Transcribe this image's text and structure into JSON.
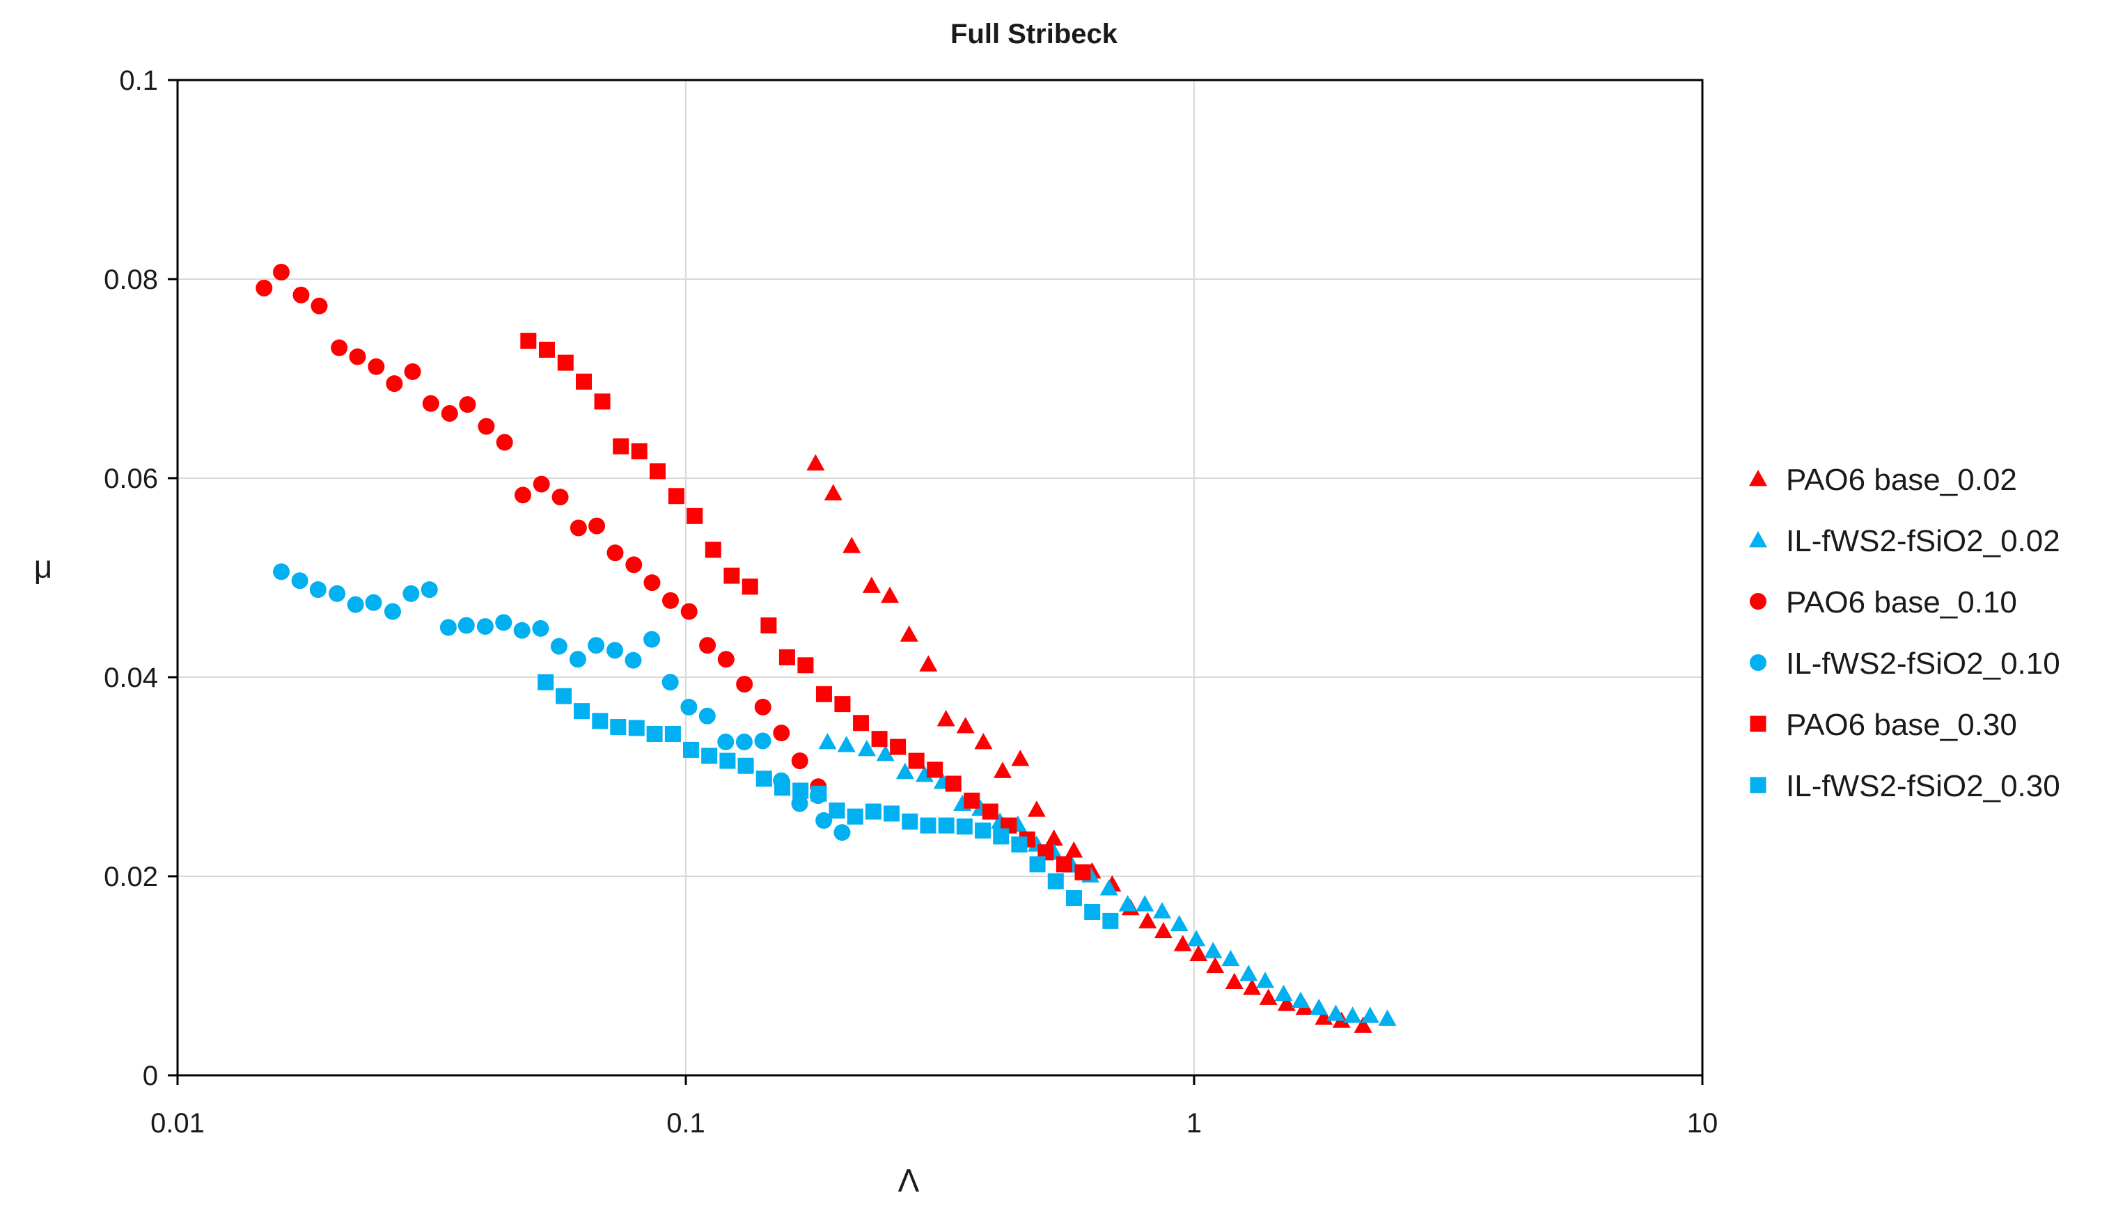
{
  "chart_data": {
    "type": "scatter",
    "title": "Full Stribeck",
    "xlabel": "Λ",
    "ylabel": "μ",
    "xscale": "log",
    "xlim": [
      0.01,
      10
    ],
    "ylim": [
      0,
      0.1
    ],
    "xticks": [
      "0.01",
      "0.1",
      "1",
      "10"
    ],
    "yticks": [
      "0",
      "0.02",
      "0.04",
      "0.06",
      "0.08",
      "0.1"
    ],
    "grid": true,
    "legend_position": "right",
    "series": [
      {
        "name": "PAO6 base_0.02",
        "color": "#ff0000",
        "marker": "triangle",
        "points": [
          [
            0.18,
            0.0615
          ],
          [
            0.195,
            0.0585
          ],
          [
            0.212,
            0.0532
          ],
          [
            0.232,
            0.0492
          ],
          [
            0.252,
            0.0482
          ],
          [
            0.275,
            0.0443
          ],
          [
            0.3,
            0.0413
          ],
          [
            0.325,
            0.0358
          ],
          [
            0.355,
            0.0351
          ],
          [
            0.385,
            0.0335
          ],
          [
            0.42,
            0.0306
          ],
          [
            0.455,
            0.0318
          ],
          [
            0.49,
            0.0267
          ],
          [
            0.53,
            0.0238
          ],
          [
            0.58,
            0.0226
          ],
          [
            0.63,
            0.0205
          ],
          [
            0.69,
            0.0192
          ],
          [
            0.75,
            0.0168
          ],
          [
            0.81,
            0.0155
          ],
          [
            0.87,
            0.0145
          ],
          [
            0.95,
            0.0132
          ],
          [
            1.02,
            0.0122
          ],
          [
            1.1,
            0.011
          ],
          [
            1.2,
            0.0094
          ],
          [
            1.3,
            0.0088
          ],
          [
            1.4,
            0.0078
          ],
          [
            1.52,
            0.0072
          ],
          [
            1.65,
            0.0068
          ],
          [
            1.8,
            0.0058
          ],
          [
            1.95,
            0.0055
          ],
          [
            2.15,
            0.005
          ]
        ]
      },
      {
        "name": "IL-fWS2-fSiO2_0.02",
        "color": "#00b0f0",
        "marker": "triangle",
        "points": [
          [
            0.19,
            0.0335
          ],
          [
            0.207,
            0.0332
          ],
          [
            0.227,
            0.0328
          ],
          [
            0.247,
            0.0323
          ],
          [
            0.27,
            0.0305
          ],
          [
            0.295,
            0.0302
          ],
          [
            0.32,
            0.0295
          ],
          [
            0.35,
            0.0273
          ],
          [
            0.38,
            0.0268
          ],
          [
            0.415,
            0.0255
          ],
          [
            0.45,
            0.0252
          ],
          [
            0.49,
            0.0232
          ],
          [
            0.53,
            0.0224
          ],
          [
            0.575,
            0.0211
          ],
          [
            0.625,
            0.0201
          ],
          [
            0.68,
            0.0188
          ],
          [
            0.74,
            0.0172
          ],
          [
            0.8,
            0.0172
          ],
          [
            0.865,
            0.0165
          ],
          [
            0.935,
            0.0152
          ],
          [
            1.01,
            0.0137
          ],
          [
            1.09,
            0.0125
          ],
          [
            1.18,
            0.0117
          ],
          [
            1.28,
            0.0102
          ],
          [
            1.38,
            0.0095
          ],
          [
            1.5,
            0.0082
          ],
          [
            1.62,
            0.0075
          ],
          [
            1.76,
            0.0068
          ],
          [
            1.9,
            0.0062
          ],
          [
            2.05,
            0.006
          ],
          [
            2.22,
            0.006
          ],
          [
            2.4,
            0.0057
          ]
        ]
      },
      {
        "name": "PAO6 base_0.10",
        "color": "#ff0000",
        "marker": "circle",
        "points": [
          [
            0.0148,
            0.0791
          ],
          [
            0.016,
            0.0807
          ],
          [
            0.0175,
            0.0784
          ],
          [
            0.019,
            0.0773
          ],
          [
            0.0208,
            0.0731
          ],
          [
            0.0226,
            0.0722
          ],
          [
            0.0246,
            0.0712
          ],
          [
            0.0267,
            0.0695
          ],
          [
            0.029,
            0.0707
          ],
          [
            0.0315,
            0.0675
          ],
          [
            0.0343,
            0.0665
          ],
          [
            0.0372,
            0.0674
          ],
          [
            0.0405,
            0.0652
          ],
          [
            0.044,
            0.0636
          ],
          [
            0.0478,
            0.0583
          ],
          [
            0.052,
            0.0594
          ],
          [
            0.0566,
            0.0581
          ],
          [
            0.0615,
            0.055
          ],
          [
            0.0668,
            0.0552
          ],
          [
            0.0726,
            0.0525
          ],
          [
            0.079,
            0.0513
          ],
          [
            0.0858,
            0.0495
          ],
          [
            0.0933,
            0.0477
          ],
          [
            0.1015,
            0.0466
          ],
          [
            0.1103,
            0.0432
          ],
          [
            0.12,
            0.0418
          ],
          [
            0.1304,
            0.0393
          ],
          [
            0.1418,
            0.037
          ],
          [
            0.1542,
            0.0344
          ],
          [
            0.1676,
            0.0316
          ],
          [
            0.1822,
            0.029
          ]
        ]
      },
      {
        "name": "IL-fWS2-fSiO2_0.10",
        "color": "#00b0f0",
        "marker": "circle",
        "points": [
          [
            0.016,
            0.0506
          ],
          [
            0.0174,
            0.0497
          ],
          [
            0.0189,
            0.0488
          ],
          [
            0.0206,
            0.0484
          ],
          [
            0.0224,
            0.0473
          ],
          [
            0.0243,
            0.0475
          ],
          [
            0.0265,
            0.0466
          ],
          [
            0.0288,
            0.0484
          ],
          [
            0.0313,
            0.0488
          ],
          [
            0.0341,
            0.045
          ],
          [
            0.037,
            0.0452
          ],
          [
            0.0403,
            0.0451
          ],
          [
            0.0438,
            0.0455
          ],
          [
            0.0476,
            0.0447
          ],
          [
            0.0518,
            0.0449
          ],
          [
            0.0563,
            0.0431
          ],
          [
            0.0613,
            0.0418
          ],
          [
            0.0666,
            0.0432
          ],
          [
            0.0725,
            0.0427
          ],
          [
            0.0788,
            0.0417
          ],
          [
            0.0857,
            0.0438
          ],
          [
            0.0932,
            0.0395
          ],
          [
            0.1014,
            0.037
          ],
          [
            0.1102,
            0.0361
          ],
          [
            0.1198,
            0.0335
          ],
          [
            0.1303,
            0.0335
          ],
          [
            0.1417,
            0.0336
          ],
          [
            0.1541,
            0.0296
          ],
          [
            0.1675,
            0.0273
          ],
          [
            0.1821,
            0.0281
          ],
          [
            0.1868,
            0.0256
          ],
          [
            0.203,
            0.0244
          ]
        ]
      },
      {
        "name": "PAO6 base_0.30",
        "color": "#ff0000",
        "marker": "square",
        "points": [
          [
            0.049,
            0.0738
          ],
          [
            0.0533,
            0.0729
          ],
          [
            0.058,
            0.0716
          ],
          [
            0.063,
            0.0697
          ],
          [
            0.0685,
            0.0677
          ],
          [
            0.0745,
            0.0632
          ],
          [
            0.081,
            0.0627
          ],
          [
            0.088,
            0.0607
          ],
          [
            0.0958,
            0.0582
          ],
          [
            0.1041,
            0.0562
          ],
          [
            0.1132,
            0.0528
          ],
          [
            0.1231,
            0.0502
          ],
          [
            0.1338,
            0.0491
          ],
          [
            0.1455,
            0.0452
          ],
          [
            0.1582,
            0.042
          ],
          [
            0.172,
            0.0412
          ],
          [
            0.187,
            0.0383
          ],
          [
            0.2033,
            0.0373
          ],
          [
            0.2211,
            0.0354
          ],
          [
            0.2404,
            0.0338
          ],
          [
            0.2614,
            0.033
          ],
          [
            0.2842,
            0.0316
          ],
          [
            0.309,
            0.0307
          ],
          [
            0.336,
            0.0293
          ],
          [
            0.3653,
            0.0276
          ],
          [
            0.3972,
            0.0265
          ],
          [
            0.4319,
            0.0251
          ],
          [
            0.4696,
            0.0237
          ],
          [
            0.5106,
            0.0224
          ],
          [
            0.5552,
            0.0212
          ],
          [
            0.6037,
            0.0204
          ]
        ]
      },
      {
        "name": "IL-fWS2-fSiO2_0.30",
        "color": "#00b0f0",
        "marker": "square",
        "points": [
          [
            0.053,
            0.0395
          ],
          [
            0.0575,
            0.0381
          ],
          [
            0.0624,
            0.0366
          ],
          [
            0.0678,
            0.0356
          ],
          [
            0.0736,
            0.035
          ],
          [
            0.08,
            0.0349
          ],
          [
            0.0868,
            0.0343
          ],
          [
            0.0943,
            0.0343
          ],
          [
            0.1024,
            0.0327
          ],
          [
            0.1112,
            0.0321
          ],
          [
            0.1208,
            0.0316
          ],
          [
            0.1312,
            0.0311
          ],
          [
            0.1425,
            0.0298
          ],
          [
            0.1548,
            0.0289
          ],
          [
            0.1681,
            0.0286
          ],
          [
            0.1826,
            0.0283
          ],
          [
            0.1983,
            0.0266
          ],
          [
            0.2154,
            0.026
          ],
          [
            0.2339,
            0.0265
          ],
          [
            0.254,
            0.0263
          ],
          [
            0.2759,
            0.0255
          ],
          [
            0.2997,
            0.0251
          ],
          [
            0.3255,
            0.0251
          ],
          [
            0.3535,
            0.025
          ],
          [
            0.3839,
            0.0246
          ],
          [
            0.417,
            0.024
          ],
          [
            0.4529,
            0.0232
          ],
          [
            0.4919,
            0.0212
          ],
          [
            0.5343,
            0.0195
          ],
          [
            0.5803,
            0.0178
          ],
          [
            0.6303,
            0.0164
          ],
          [
            0.6846,
            0.0155
          ]
        ]
      }
    ]
  }
}
